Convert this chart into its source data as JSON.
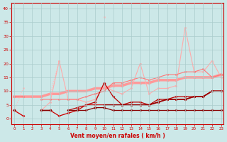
{
  "x": [
    0,
    1,
    2,
    3,
    4,
    5,
    6,
    7,
    8,
    9,
    10,
    11,
    12,
    13,
    14,
    15,
    16,
    17,
    18,
    19,
    20,
    21,
    22,
    23
  ],
  "series": [
    {
      "name": "avg_line_smooth",
      "color": "#ff9999",
      "lw": 2.5,
      "marker": "o",
      "markersize": 2.5,
      "linestyle": "solid",
      "y": [
        8,
        8,
        8,
        8,
        9,
        9,
        10,
        10,
        10,
        11,
        11,
        12,
        12,
        13,
        13,
        13,
        14,
        14,
        14,
        15,
        15,
        15,
        15,
        16
      ]
    },
    {
      "name": "dotted_light_peak",
      "color": "#ffbbbb",
      "lw": 0.8,
      "marker": "o",
      "markersize": 2,
      "linestyle": "dotted",
      "y": [
        3,
        11,
        null,
        null,
        9,
        21,
        null,
        null,
        null,
        null,
        37,
        null,
        null,
        null,
        null,
        null,
        null,
        null,
        null,
        null,
        null,
        null,
        null,
        null
      ]
    },
    {
      "name": "light_pink_volatile",
      "color": "#ffaaaa",
      "lw": 0.8,
      "marker": "o",
      "markersize": 2,
      "linestyle": "solid",
      "y": [
        3,
        1,
        null,
        3,
        6,
        21,
        7,
        7,
        6,
        7,
        12,
        10,
        9,
        11,
        20,
        9,
        11,
        11,
        12,
        33,
        17,
        17,
        21,
        15
      ]
    },
    {
      "name": "medium_pink",
      "color": "#ff7777",
      "lw": 0.8,
      "marker": "o",
      "markersize": 2,
      "linestyle": "solid",
      "y": [
        8,
        8,
        null,
        7,
        7,
        7,
        7,
        7,
        8,
        9,
        10,
        13,
        13,
        14,
        15,
        14,
        15,
        16,
        16,
        17,
        17,
        18,
        15,
        16
      ]
    },
    {
      "name": "dark_red_main",
      "color": "#cc0000",
      "lw": 0.9,
      "marker": "D",
      "markersize": 2,
      "linestyle": "solid",
      "y": [
        3,
        1,
        null,
        3,
        3,
        1,
        2,
        3,
        5,
        5,
        5,
        5,
        5,
        5,
        5,
        5,
        6,
        7,
        7,
        7,
        8,
        8,
        10,
        10
      ]
    },
    {
      "name": "dark_red2",
      "color": "#bb0000",
      "lw": 0.9,
      "marker": "D",
      "markersize": 2,
      "linestyle": "solid",
      "y": [
        3,
        null,
        null,
        3,
        3,
        null,
        3,
        4,
        5,
        6,
        13,
        8,
        5,
        6,
        6,
        5,
        7,
        7,
        8,
        8,
        8,
        8,
        10,
        10
      ]
    },
    {
      "name": "dark_red3_trend",
      "color": "#990000",
      "lw": 1.2,
      "marker": "D",
      "markersize": 2,
      "linestyle": "solid",
      "y": [
        3,
        null,
        null,
        null,
        null,
        null,
        null,
        null,
        null,
        null,
        5,
        5,
        5,
        5,
        5,
        5,
        6,
        7,
        7,
        7,
        8,
        8,
        10,
        10
      ]
    },
    {
      "name": "darkest_red_zigzag",
      "color": "#880000",
      "lw": 0.9,
      "marker": "D",
      "markersize": 2,
      "linestyle": "solid",
      "y": [
        3,
        null,
        null,
        3,
        3,
        null,
        3,
        3,
        3,
        4,
        4,
        3,
        3,
        3,
        3,
        3,
        3,
        3,
        3,
        3,
        3,
        3,
        3,
        3
      ]
    }
  ],
  "xlim": [
    -0.3,
    23.3
  ],
  "ylim": [
    -2,
    42
  ],
  "yticks": [
    0,
    5,
    10,
    15,
    20,
    25,
    30,
    35,
    40
  ],
  "xticks": [
    0,
    1,
    2,
    3,
    4,
    5,
    6,
    7,
    8,
    9,
    10,
    11,
    12,
    13,
    14,
    15,
    16,
    17,
    18,
    19,
    20,
    21,
    22,
    23
  ],
  "xlabel": "Vent moyen/en rafales ( km/h )",
  "bg_color": "#cce8e8",
  "grid_color": "#aacccc",
  "axis_color": "#cc0000",
  "tick_color": "#cc0000",
  "label_color": "#cc0000"
}
